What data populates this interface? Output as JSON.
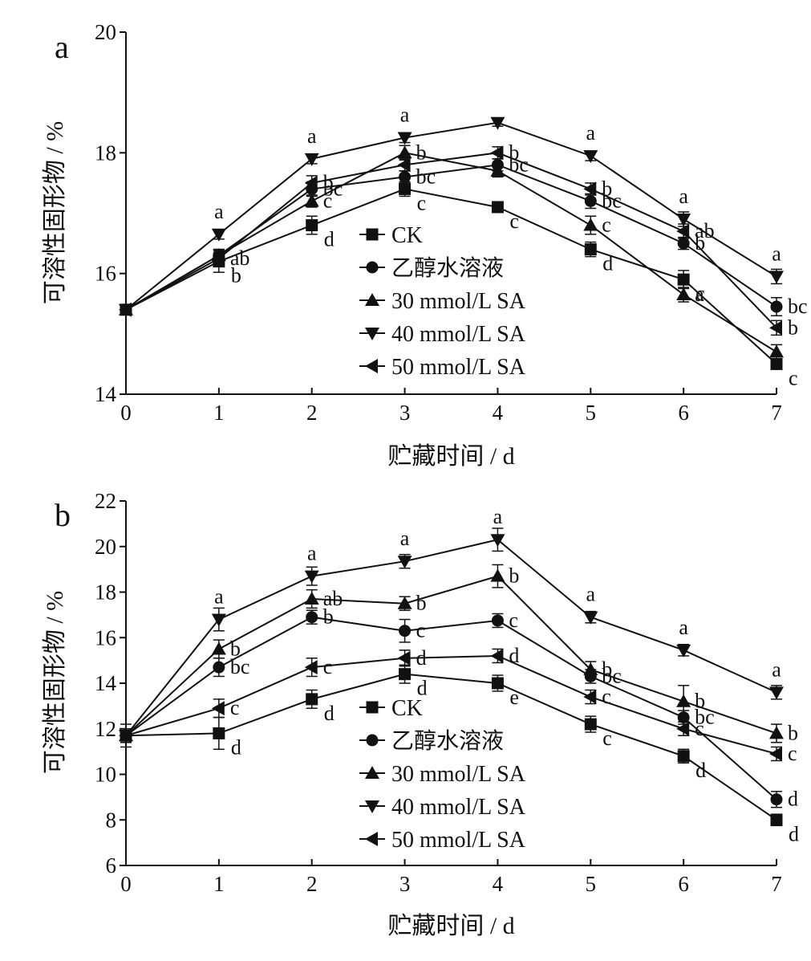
{
  "chart_data": [
    {
      "type": "line",
      "panel_label": "a",
      "xlabel": "贮藏时间 / d",
      "ylabel": "可溶性固形物 / %",
      "x": [
        0,
        1,
        2,
        3,
        4,
        5,
        6,
        7
      ],
      "xlim": [
        0,
        7
      ],
      "ylim": [
        14,
        20
      ],
      "yticks": [
        14,
        16,
        18,
        20
      ],
      "legend_position": "center",
      "series": [
        {
          "name": "CK",
          "marker": "square",
          "values": [
            15.4,
            16.2,
            16.8,
            17.4,
            17.1,
            16.4,
            15.9,
            14.5
          ],
          "errors": [
            0.06,
            0.18,
            0.15,
            0.12,
            0.06,
            0.12,
            0.15,
            0.06
          ],
          "labels": [
            "",
            "b",
            "d",
            "c",
            "c",
            "d",
            "c",
            "c"
          ]
        },
        {
          "name": "乙醇水溶液",
          "marker": "circle",
          "values": [
            15.4,
            16.3,
            17.4,
            17.6,
            17.8,
            17.2,
            16.5,
            15.45
          ],
          "errors": [
            0.06,
            0.1,
            0.12,
            0.1,
            0.1,
            0.12,
            0.1,
            0.15
          ],
          "labels": [
            "",
            "",
            "bc",
            "bc",
            "bc",
            "bc",
            "b",
            "bc"
          ]
        },
        {
          "name": "30 mmol/L SA",
          "marker": "triangle-up",
          "values": [
            15.4,
            16.3,
            17.2,
            18.0,
            17.7,
            16.8,
            15.65,
            14.7
          ],
          "errors": [
            0.06,
            0.1,
            0.1,
            0.12,
            0.1,
            0.15,
            0.12,
            0.12
          ],
          "labels": [
            "",
            "",
            "c",
            "b",
            "",
            "c",
            "a",
            ""
          ]
        },
        {
          "name": "40 mmol/L SA",
          "marker": "triangle-down",
          "values": [
            15.4,
            16.65,
            17.9,
            18.25,
            18.5,
            17.95,
            16.9,
            15.95
          ],
          "errors": [
            0.06,
            0.08,
            0.08,
            0.08,
            0.06,
            0.08,
            0.12,
            0.12
          ],
          "labels": [
            "",
            "a",
            "a",
            "a",
            "",
            "a",
            "a",
            "a"
          ]
        },
        {
          "name": "50 mmol/L SA",
          "marker": "triangle-left",
          "values": [
            15.4,
            16.25,
            17.5,
            17.8,
            18.0,
            17.4,
            16.7,
            15.1
          ],
          "errors": [
            0.06,
            0.1,
            0.12,
            0.1,
            0.1,
            0.1,
            0.12,
            0.12
          ],
          "labels": [
            "",
            "ab",
            "b",
            "",
            "b",
            "b",
            "ab",
            "b"
          ]
        }
      ]
    },
    {
      "type": "line",
      "panel_label": "b",
      "xlabel": "贮藏时间 / d",
      "ylabel": "可溶性固形物 / %",
      "x": [
        0,
        1,
        2,
        3,
        4,
        5,
        6,
        7
      ],
      "xlim": [
        0,
        7
      ],
      "ylim": [
        6,
        22
      ],
      "yticks": [
        6,
        8,
        10,
        12,
        14,
        16,
        18,
        20,
        22
      ],
      "legend_position": "bottom-center",
      "series": [
        {
          "name": "CK",
          "marker": "square",
          "values": [
            11.7,
            11.8,
            13.3,
            14.4,
            14.0,
            12.2,
            10.8,
            8.0
          ],
          "errors": [
            0.5,
            0.7,
            0.4,
            0.4,
            0.35,
            0.35,
            0.3,
            0.25
          ],
          "labels": [
            "",
            "d",
            "d",
            "d",
            "e",
            "c",
            "d",
            "d"
          ]
        },
        {
          "name": "乙醇水溶液",
          "marker": "circle",
          "values": [
            11.7,
            14.7,
            16.9,
            16.3,
            16.75,
            14.3,
            12.5,
            8.9
          ],
          "errors": [
            0.3,
            0.4,
            0.3,
            0.5,
            0.3,
            0.3,
            0.3,
            0.35
          ],
          "labels": [
            "",
            "bc",
            "b",
            "c",
            "c",
            "bc",
            "bc",
            "d"
          ]
        },
        {
          "name": "30 mmol/L SA",
          "marker": "triangle-up",
          "values": [
            11.7,
            15.5,
            17.7,
            17.5,
            18.7,
            14.6,
            13.2,
            11.8
          ],
          "errors": [
            0.3,
            0.4,
            0.4,
            0.3,
            0.5,
            0.35,
            0.7,
            0.4
          ],
          "labels": [
            "",
            "b",
            "ab",
            "b",
            "b",
            "b",
            "b",
            "b"
          ]
        },
        {
          "name": "40 mmol/L SA",
          "marker": "triangle-down",
          "values": [
            11.7,
            16.8,
            18.7,
            19.35,
            20.3,
            16.9,
            15.45,
            13.6
          ],
          "errors": [
            0.3,
            0.5,
            0.4,
            0.3,
            0.5,
            0.25,
            0.25,
            0.3
          ],
          "labels": [
            "",
            "a",
            "a",
            "a",
            "a",
            "a",
            "a",
            "a"
          ]
        },
        {
          "name": "50 mmol/L SA",
          "marker": "triangle-left",
          "values": [
            11.7,
            12.9,
            14.7,
            15.1,
            15.2,
            13.4,
            12.0,
            10.9
          ],
          "errors": [
            0.3,
            0.4,
            0.4,
            0.35,
            0.3,
            0.3,
            0.3,
            0.3
          ],
          "labels": [
            "",
            "c",
            "c",
            "d",
            "d",
            "c",
            "c",
            "c"
          ]
        }
      ]
    }
  ]
}
